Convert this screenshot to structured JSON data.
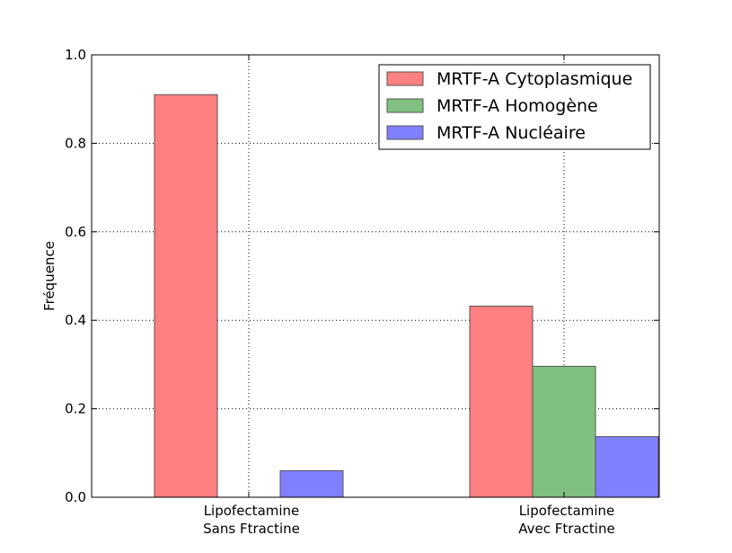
{
  "chart_data": {
    "type": "bar",
    "title": "",
    "xlabel": "",
    "ylabel": "Fréquence",
    "ylim": [
      0,
      1.0
    ],
    "yticks": [
      "0.0",
      "0.2",
      "0.4",
      "0.6",
      "0.8",
      "1.0"
    ],
    "categories": [
      [
        "Lipofectamine",
        "Sans Ftractine"
      ],
      [
        "Lipofectamine",
        "Avec Ftractine"
      ]
    ],
    "series": [
      {
        "name": "MRTF-A Cytoplasmique",
        "color": "#ff8080",
        "values": [
          0.91,
          0.432
        ]
      },
      {
        "name": "MRTF-A Homogène",
        "color": "#80c080",
        "values": [
          0.0,
          0.296
        ]
      },
      {
        "name": "MRTF-A Nucléaire",
        "color": "#8080ff",
        "values": [
          0.06,
          0.137
        ]
      }
    ],
    "grid": true,
    "legend_position": "top-right"
  }
}
